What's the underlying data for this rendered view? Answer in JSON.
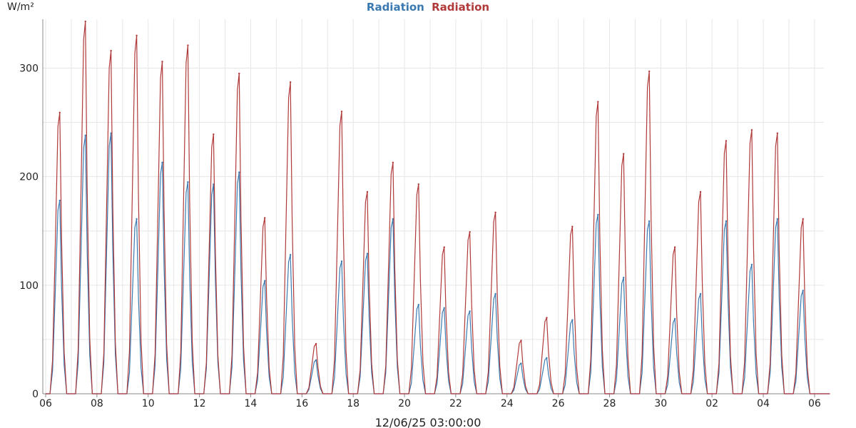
{
  "chart_data": {
    "type": "line",
    "title_parts": [
      "Radiation",
      "Radiation"
    ],
    "ylabel": "W/m²",
    "xlabel": "12/06/25 03:00:00",
    "ylim": [
      0,
      345
    ],
    "y_ticks": [
      0,
      100,
      200,
      300
    ],
    "x_ticks": [
      "06",
      "08",
      "10",
      "12",
      "14",
      "16",
      "18",
      "20",
      "22",
      "24",
      "26",
      "28",
      "30",
      "02",
      "04",
      "06"
    ],
    "x_range_days": [
      0,
      30.6
    ],
    "series": [
      {
        "name": "Radiation",
        "color": "#3a7ab0",
        "peaks": [
          [
            0.55,
            178
          ],
          [
            1.55,
            238
          ],
          [
            2.55,
            240
          ],
          [
            3.55,
            161
          ],
          [
            4.55,
            213
          ],
          [
            5.55,
            195
          ],
          [
            6.55,
            193
          ],
          [
            7.55,
            204
          ],
          [
            8.55,
            104
          ],
          [
            9.55,
            128
          ],
          [
            10.55,
            31
          ],
          [
            11.55,
            122
          ],
          [
            12.55,
            129
          ],
          [
            13.55,
            161
          ],
          [
            14.55,
            82
          ],
          [
            15.55,
            79
          ],
          [
            16.55,
            76
          ],
          [
            17.55,
            92
          ],
          [
            18.55,
            28
          ],
          [
            19.55,
            33
          ],
          [
            20.55,
            68
          ],
          [
            21.55,
            165
          ],
          [
            22.55,
            107
          ],
          [
            23.55,
            159
          ],
          [
            24.55,
            69
          ],
          [
            25.55,
            92
          ],
          [
            26.55,
            159
          ],
          [
            27.55,
            119
          ],
          [
            28.55,
            161
          ],
          [
            29.55,
            95
          ]
        ]
      },
      {
        "name": "Radiation",
        "color": "#b03a3a",
        "peaks": [
          [
            0.55,
            259
          ],
          [
            1.55,
            343
          ],
          [
            2.55,
            316
          ],
          [
            3.55,
            330
          ],
          [
            4.55,
            306
          ],
          [
            5.55,
            321
          ],
          [
            6.55,
            239
          ],
          [
            7.55,
            295
          ],
          [
            8.55,
            162
          ],
          [
            9.55,
            287
          ],
          [
            10.55,
            46
          ],
          [
            11.55,
            260
          ],
          [
            12.55,
            186
          ],
          [
            13.55,
            213
          ],
          [
            14.55,
            193
          ],
          [
            15.55,
            135
          ],
          [
            16.55,
            149
          ],
          [
            17.55,
            167
          ],
          [
            18.55,
            49
          ],
          [
            19.55,
            70
          ],
          [
            20.55,
            154
          ],
          [
            21.55,
            269
          ],
          [
            22.55,
            221
          ],
          [
            23.55,
            297
          ],
          [
            24.55,
            135
          ],
          [
            25.55,
            186
          ],
          [
            26.55,
            233
          ],
          [
            27.55,
            243
          ],
          [
            28.55,
            240
          ],
          [
            29.55,
            161
          ]
        ]
      }
    ]
  }
}
